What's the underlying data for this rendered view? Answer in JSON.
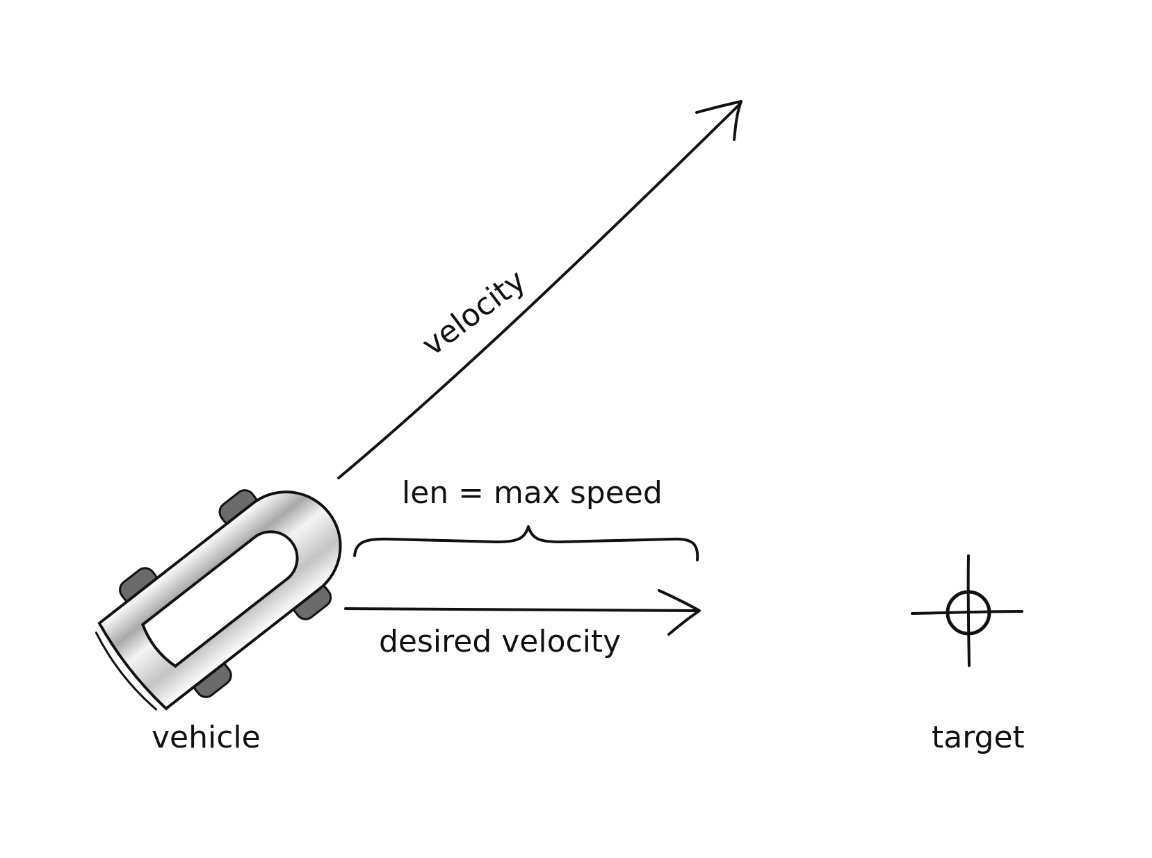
{
  "labels": {
    "velocity": "velocity",
    "len_max_speed": "len = max speed",
    "desired_velocity": "desired velocity",
    "vehicle": "vehicle",
    "target": "target"
  },
  "colors": {
    "ink": "#111111",
    "tire": "#6b6b6b",
    "body_shade": "#bdbdbd",
    "background": "#ffffff"
  }
}
